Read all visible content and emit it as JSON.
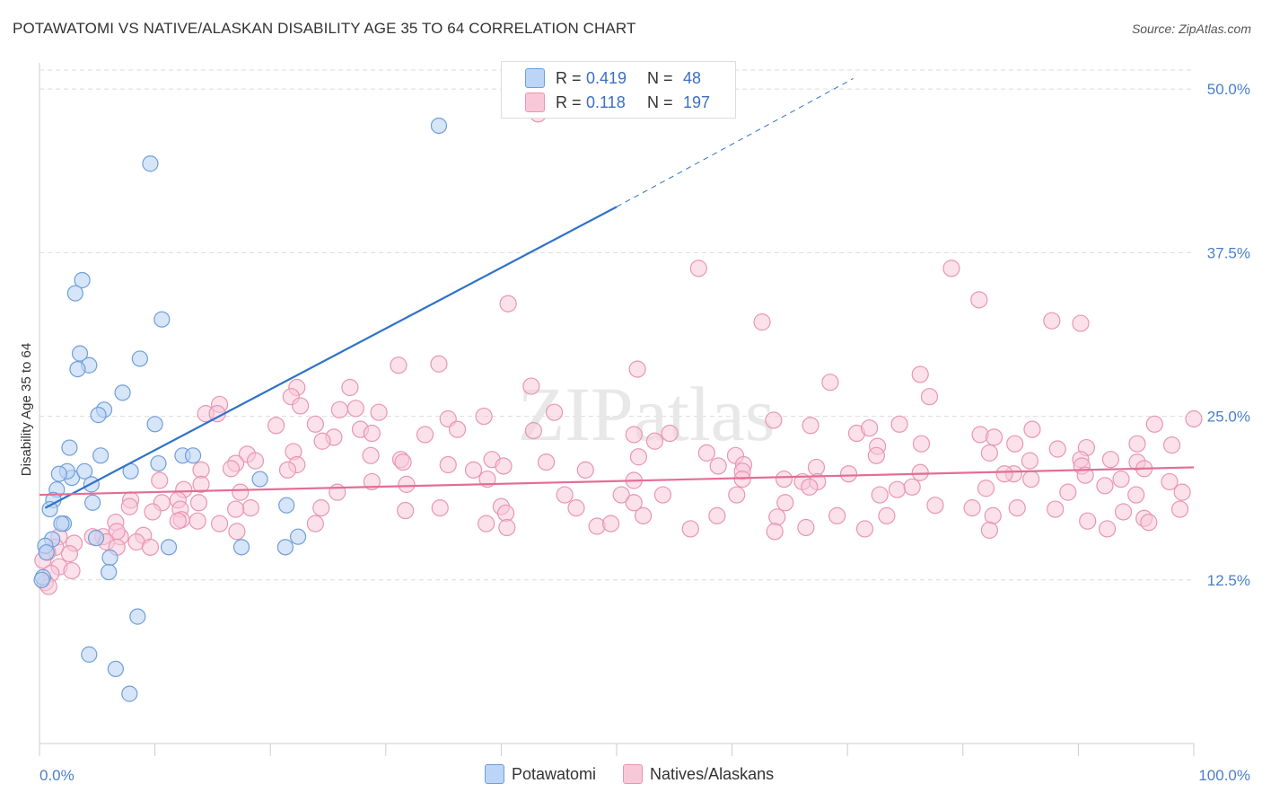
{
  "title": "POTAWATOMI VS NATIVE/ALASKAN DISABILITY AGE 35 TO 64 CORRELATION CHART",
  "source": "Source: ZipAtlas.com",
  "watermark": "ZIPatlas",
  "colors": {
    "blue_fill": "#bcd4f5",
    "blue_stroke": "#6f9fd8",
    "blue_line": "#2f72c9",
    "pink_fill": "#f8c8d8",
    "pink_stroke": "#e896b2",
    "pink_line": "#e36d96",
    "grid": "#dcdcdc",
    "tick_text": "#4a7fc8"
  },
  "legend": {
    "rows": [
      {
        "r_label": "R =",
        "r_value": "0.419",
        "n_label": "N =",
        "n_value": "48"
      },
      {
        "r_label": "R =",
        "r_value": "0.118",
        "n_label": "N =",
        "n_value": "197"
      }
    ]
  },
  "chart_data": {
    "type": "scatter",
    "title": "POTAWATOMI VS NATIVE/ALASKAN DISABILITY AGE 35 TO 64 CORRELATION CHART",
    "xlabel": "",
    "ylabel": "Disability Age 35 to 64",
    "xlim": [
      0,
      100
    ],
    "ylim": [
      0,
      52
    ],
    "x_ticks": [
      "0.0%",
      "100.0%"
    ],
    "y_ticks": [
      {
        "value": 12.5,
        "label": "12.5%"
      },
      {
        "value": 25.0,
        "label": "25.0%"
      },
      {
        "value": 37.5,
        "label": "37.5%"
      },
      {
        "value": 50.0,
        "label": "50.0%"
      }
    ],
    "grid": true,
    "legend_position": "bottom-center",
    "series": [
      {
        "name": "Potawatomi",
        "color": "#bcd4f5",
        "trend": {
          "x0": 0.5,
          "y0": 18.0,
          "x1": 50,
          "y1": 41.0,
          "x_solid_end": 50,
          "x_dash_end": 70.5,
          "y_dash_end": 50.8
        },
        "points": [
          [
            34.6,
            47.2
          ],
          [
            9.6,
            44.3
          ],
          [
            3.7,
            35.4
          ],
          [
            3.1,
            34.4
          ],
          [
            10.6,
            32.4
          ],
          [
            8.7,
            29.4
          ],
          [
            3.5,
            29.8
          ],
          [
            4.3,
            28.9
          ],
          [
            3.3,
            28.6
          ],
          [
            7.2,
            26.8
          ],
          [
            5.6,
            25.5
          ],
          [
            5.1,
            25.1
          ],
          [
            10.0,
            24.4
          ],
          [
            2.6,
            22.6
          ],
          [
            12.4,
            22.0
          ],
          [
            13.3,
            22.0
          ],
          [
            5.3,
            22.0
          ],
          [
            10.3,
            21.4
          ],
          [
            2.8,
            20.3
          ],
          [
            2.4,
            20.8
          ],
          [
            1.7,
            20.6
          ],
          [
            3.9,
            20.8
          ],
          [
            7.9,
            20.8
          ],
          [
            1.5,
            19.4
          ],
          [
            1.2,
            18.6
          ],
          [
            4.5,
            19.8
          ],
          [
            0.9,
            17.9
          ],
          [
            19.1,
            20.2
          ],
          [
            4.6,
            18.4
          ],
          [
            21.4,
            18.2
          ],
          [
            2.1,
            16.8
          ],
          [
            1.9,
            16.8
          ],
          [
            1.1,
            15.6
          ],
          [
            4.9,
            15.7
          ],
          [
            0.5,
            15.1
          ],
          [
            11.2,
            15.0
          ],
          [
            17.5,
            15.0
          ],
          [
            21.3,
            15.0
          ],
          [
            22.4,
            15.8
          ],
          [
            6.1,
            14.2
          ],
          [
            0.6,
            14.6
          ],
          [
            6.0,
            13.1
          ],
          [
            0.3,
            12.7
          ],
          [
            8.5,
            9.7
          ],
          [
            4.3,
            6.8
          ],
          [
            6.6,
            5.7
          ],
          [
            7.8,
            3.8
          ],
          [
            0.2,
            12.5
          ]
        ]
      },
      {
        "name": "Natives/Alaskans",
        "color": "#f8c8d8",
        "trend": {
          "x0": 0,
          "y0": 19.0,
          "x1": 100,
          "y1": 21.1
        },
        "points": [
          [
            43.2,
            48.1
          ],
          [
            57.1,
            36.3
          ],
          [
            79.0,
            36.3
          ],
          [
            40.6,
            33.6
          ],
          [
            81.4,
            33.9
          ],
          [
            62.6,
            32.2
          ],
          [
            90.2,
            32.1
          ],
          [
            87.7,
            32.3
          ],
          [
            31.1,
            28.9
          ],
          [
            34.6,
            29.0
          ],
          [
            51.8,
            28.6
          ],
          [
            76.3,
            28.2
          ],
          [
            68.5,
            27.6
          ],
          [
            26.9,
            27.2
          ],
          [
            22.3,
            27.2
          ],
          [
            42.6,
            27.3
          ],
          [
            77.1,
            26.5
          ],
          [
            21.8,
            26.5
          ],
          [
            15.6,
            25.9
          ],
          [
            22.6,
            25.8
          ],
          [
            27.4,
            25.6
          ],
          [
            26.0,
            25.5
          ],
          [
            14.4,
            25.2
          ],
          [
            15.4,
            25.2
          ],
          [
            29.4,
            25.3
          ],
          [
            44.6,
            25.3
          ],
          [
            38.5,
            25.0
          ],
          [
            35.4,
            24.8
          ],
          [
            63.6,
            24.7
          ],
          [
            74.5,
            24.4
          ],
          [
            66.8,
            24.3
          ],
          [
            96.6,
            24.4
          ],
          [
            100,
            24.8
          ],
          [
            20.5,
            24.3
          ],
          [
            23.9,
            24.4
          ],
          [
            36.2,
            24.0
          ],
          [
            27.8,
            24.0
          ],
          [
            42.8,
            23.9
          ],
          [
            33.4,
            23.6
          ],
          [
            51.5,
            23.6
          ],
          [
            54.6,
            23.7
          ],
          [
            70.8,
            23.7
          ],
          [
            71.9,
            24.1
          ],
          [
            81.5,
            23.6
          ],
          [
            86.0,
            24.0
          ],
          [
            28.8,
            23.7
          ],
          [
            25.5,
            23.4
          ],
          [
            82.7,
            23.4
          ],
          [
            24.5,
            23.1
          ],
          [
            53.3,
            23.1
          ],
          [
            84.5,
            22.9
          ],
          [
            76.4,
            22.9
          ],
          [
            95.1,
            22.9
          ],
          [
            88.2,
            22.5
          ],
          [
            98.1,
            22.8
          ],
          [
            72.6,
            22.7
          ],
          [
            90.7,
            22.6
          ],
          [
            22.0,
            22.3
          ],
          [
            72.5,
            22.0
          ],
          [
            57.8,
            22.2
          ],
          [
            60.3,
            22.0
          ],
          [
            82.3,
            22.2
          ],
          [
            18.0,
            22.1
          ],
          [
            28.7,
            22.0
          ],
          [
            31.3,
            21.7
          ],
          [
            39.2,
            21.7
          ],
          [
            43.9,
            21.5
          ],
          [
            51.9,
            21.9
          ],
          [
            90.2,
            21.7
          ],
          [
            92.8,
            21.7
          ],
          [
            85.8,
            21.6
          ],
          [
            95.1,
            21.5
          ],
          [
            18.7,
            21.6
          ],
          [
            17.0,
            21.4
          ],
          [
            22.3,
            21.3
          ],
          [
            31.5,
            21.5
          ],
          [
            35.4,
            21.3
          ],
          [
            40.2,
            21.2
          ],
          [
            58.8,
            21.2
          ],
          [
            61.0,
            21.3
          ],
          [
            67.3,
            21.1
          ],
          [
            95.7,
            21.0
          ],
          [
            90.3,
            21.2
          ],
          [
            16.6,
            21.0
          ],
          [
            21.5,
            20.9
          ],
          [
            14.0,
            20.9
          ],
          [
            37.6,
            20.9
          ],
          [
            47.3,
            20.9
          ],
          [
            60.9,
            20.8
          ],
          [
            70.1,
            20.6
          ],
          [
            76.3,
            20.7
          ],
          [
            84.4,
            20.6
          ],
          [
            83.6,
            20.6
          ],
          [
            85.9,
            20.2
          ],
          [
            90.6,
            20.5
          ],
          [
            97.9,
            20.0
          ],
          [
            93.7,
            20.2
          ],
          [
            10.4,
            20.1
          ],
          [
            14.0,
            19.8
          ],
          [
            28.8,
            20.0
          ],
          [
            31.8,
            19.8
          ],
          [
            38.8,
            20.2
          ],
          [
            51.5,
            20.1
          ],
          [
            60.9,
            20.2
          ],
          [
            64.5,
            20.2
          ],
          [
            66.1,
            20.0
          ],
          [
            67.4,
            20.0
          ],
          [
            66.7,
            19.6
          ],
          [
            74.3,
            19.4
          ],
          [
            75.6,
            19.6
          ],
          [
            82.0,
            19.5
          ],
          [
            92.3,
            19.7
          ],
          [
            12.5,
            19.4
          ],
          [
            7.9,
            18.6
          ],
          [
            17.4,
            19.2
          ],
          [
            25.8,
            19.2
          ],
          [
            45.5,
            19.0
          ],
          [
            50.4,
            19.0
          ],
          [
            54.0,
            19.0
          ],
          [
            60.4,
            19.0
          ],
          [
            72.8,
            19.0
          ],
          [
            89.1,
            19.2
          ],
          [
            99.0,
            19.2
          ],
          [
            95.0,
            19.0
          ],
          [
            12.0,
            18.6
          ],
          [
            13.8,
            18.4
          ],
          [
            10.6,
            18.4
          ],
          [
            7.8,
            18.1
          ],
          [
            18.3,
            18.0
          ],
          [
            24.4,
            18.0
          ],
          [
            34.7,
            18.0
          ],
          [
            40.0,
            18.1
          ],
          [
            46.5,
            18.0
          ],
          [
            51.5,
            18.4
          ],
          [
            64.6,
            18.4
          ],
          [
            77.6,
            18.2
          ],
          [
            80.8,
            18.0
          ],
          [
            84.7,
            18.0
          ],
          [
            88.0,
            17.9
          ],
          [
            93.9,
            17.7
          ],
          [
            98.8,
            17.9
          ],
          [
            9.8,
            17.7
          ],
          [
            12.2,
            17.9
          ],
          [
            17.0,
            17.9
          ],
          [
            31.7,
            17.8
          ],
          [
            40.4,
            17.6
          ],
          [
            52.3,
            17.4
          ],
          [
            58.7,
            17.4
          ],
          [
            63.9,
            17.3
          ],
          [
            69.1,
            17.4
          ],
          [
            73.4,
            17.4
          ],
          [
            82.6,
            17.4
          ],
          [
            90.8,
            17.0
          ],
          [
            95.7,
            17.2
          ],
          [
            96.1,
            16.9
          ],
          [
            12.3,
            17.1
          ],
          [
            6.6,
            16.9
          ],
          [
            12.0,
            17.0
          ],
          [
            13.7,
            17.0
          ],
          [
            15.6,
            16.8
          ],
          [
            23.9,
            16.8
          ],
          [
            38.7,
            16.8
          ],
          [
            40.5,
            16.5
          ],
          [
            48.3,
            16.6
          ],
          [
            49.5,
            16.8
          ],
          [
            56.4,
            16.4
          ],
          [
            63.7,
            16.2
          ],
          [
            66.4,
            16.5
          ],
          [
            71.5,
            16.4
          ],
          [
            82.3,
            16.3
          ],
          [
            92.5,
            16.4
          ],
          [
            17.1,
            16.2
          ],
          [
            9.0,
            15.9
          ],
          [
            5.5,
            15.8
          ],
          [
            4.6,
            15.8
          ],
          [
            7.0,
            15.8
          ],
          [
            6.7,
            16.2
          ],
          [
            1.7,
            15.8
          ],
          [
            8.4,
            15.4
          ],
          [
            5.8,
            15.4
          ],
          [
            3.0,
            15.3
          ],
          [
            1.4,
            15.0
          ],
          [
            0.7,
            14.6
          ],
          [
            2.6,
            14.5
          ],
          [
            0.3,
            14.0
          ],
          [
            1.7,
            13.5
          ],
          [
            2.8,
            13.2
          ],
          [
            1.0,
            13.0
          ],
          [
            0.5,
            12.3
          ],
          [
            0.8,
            12.0
          ],
          [
            6.7,
            15.0
          ],
          [
            9.6,
            15.0
          ]
        ]
      }
    ]
  },
  "legend_bottom": [
    {
      "name": "Potawatomi"
    },
    {
      "name": "Natives/Alaskans"
    }
  ]
}
